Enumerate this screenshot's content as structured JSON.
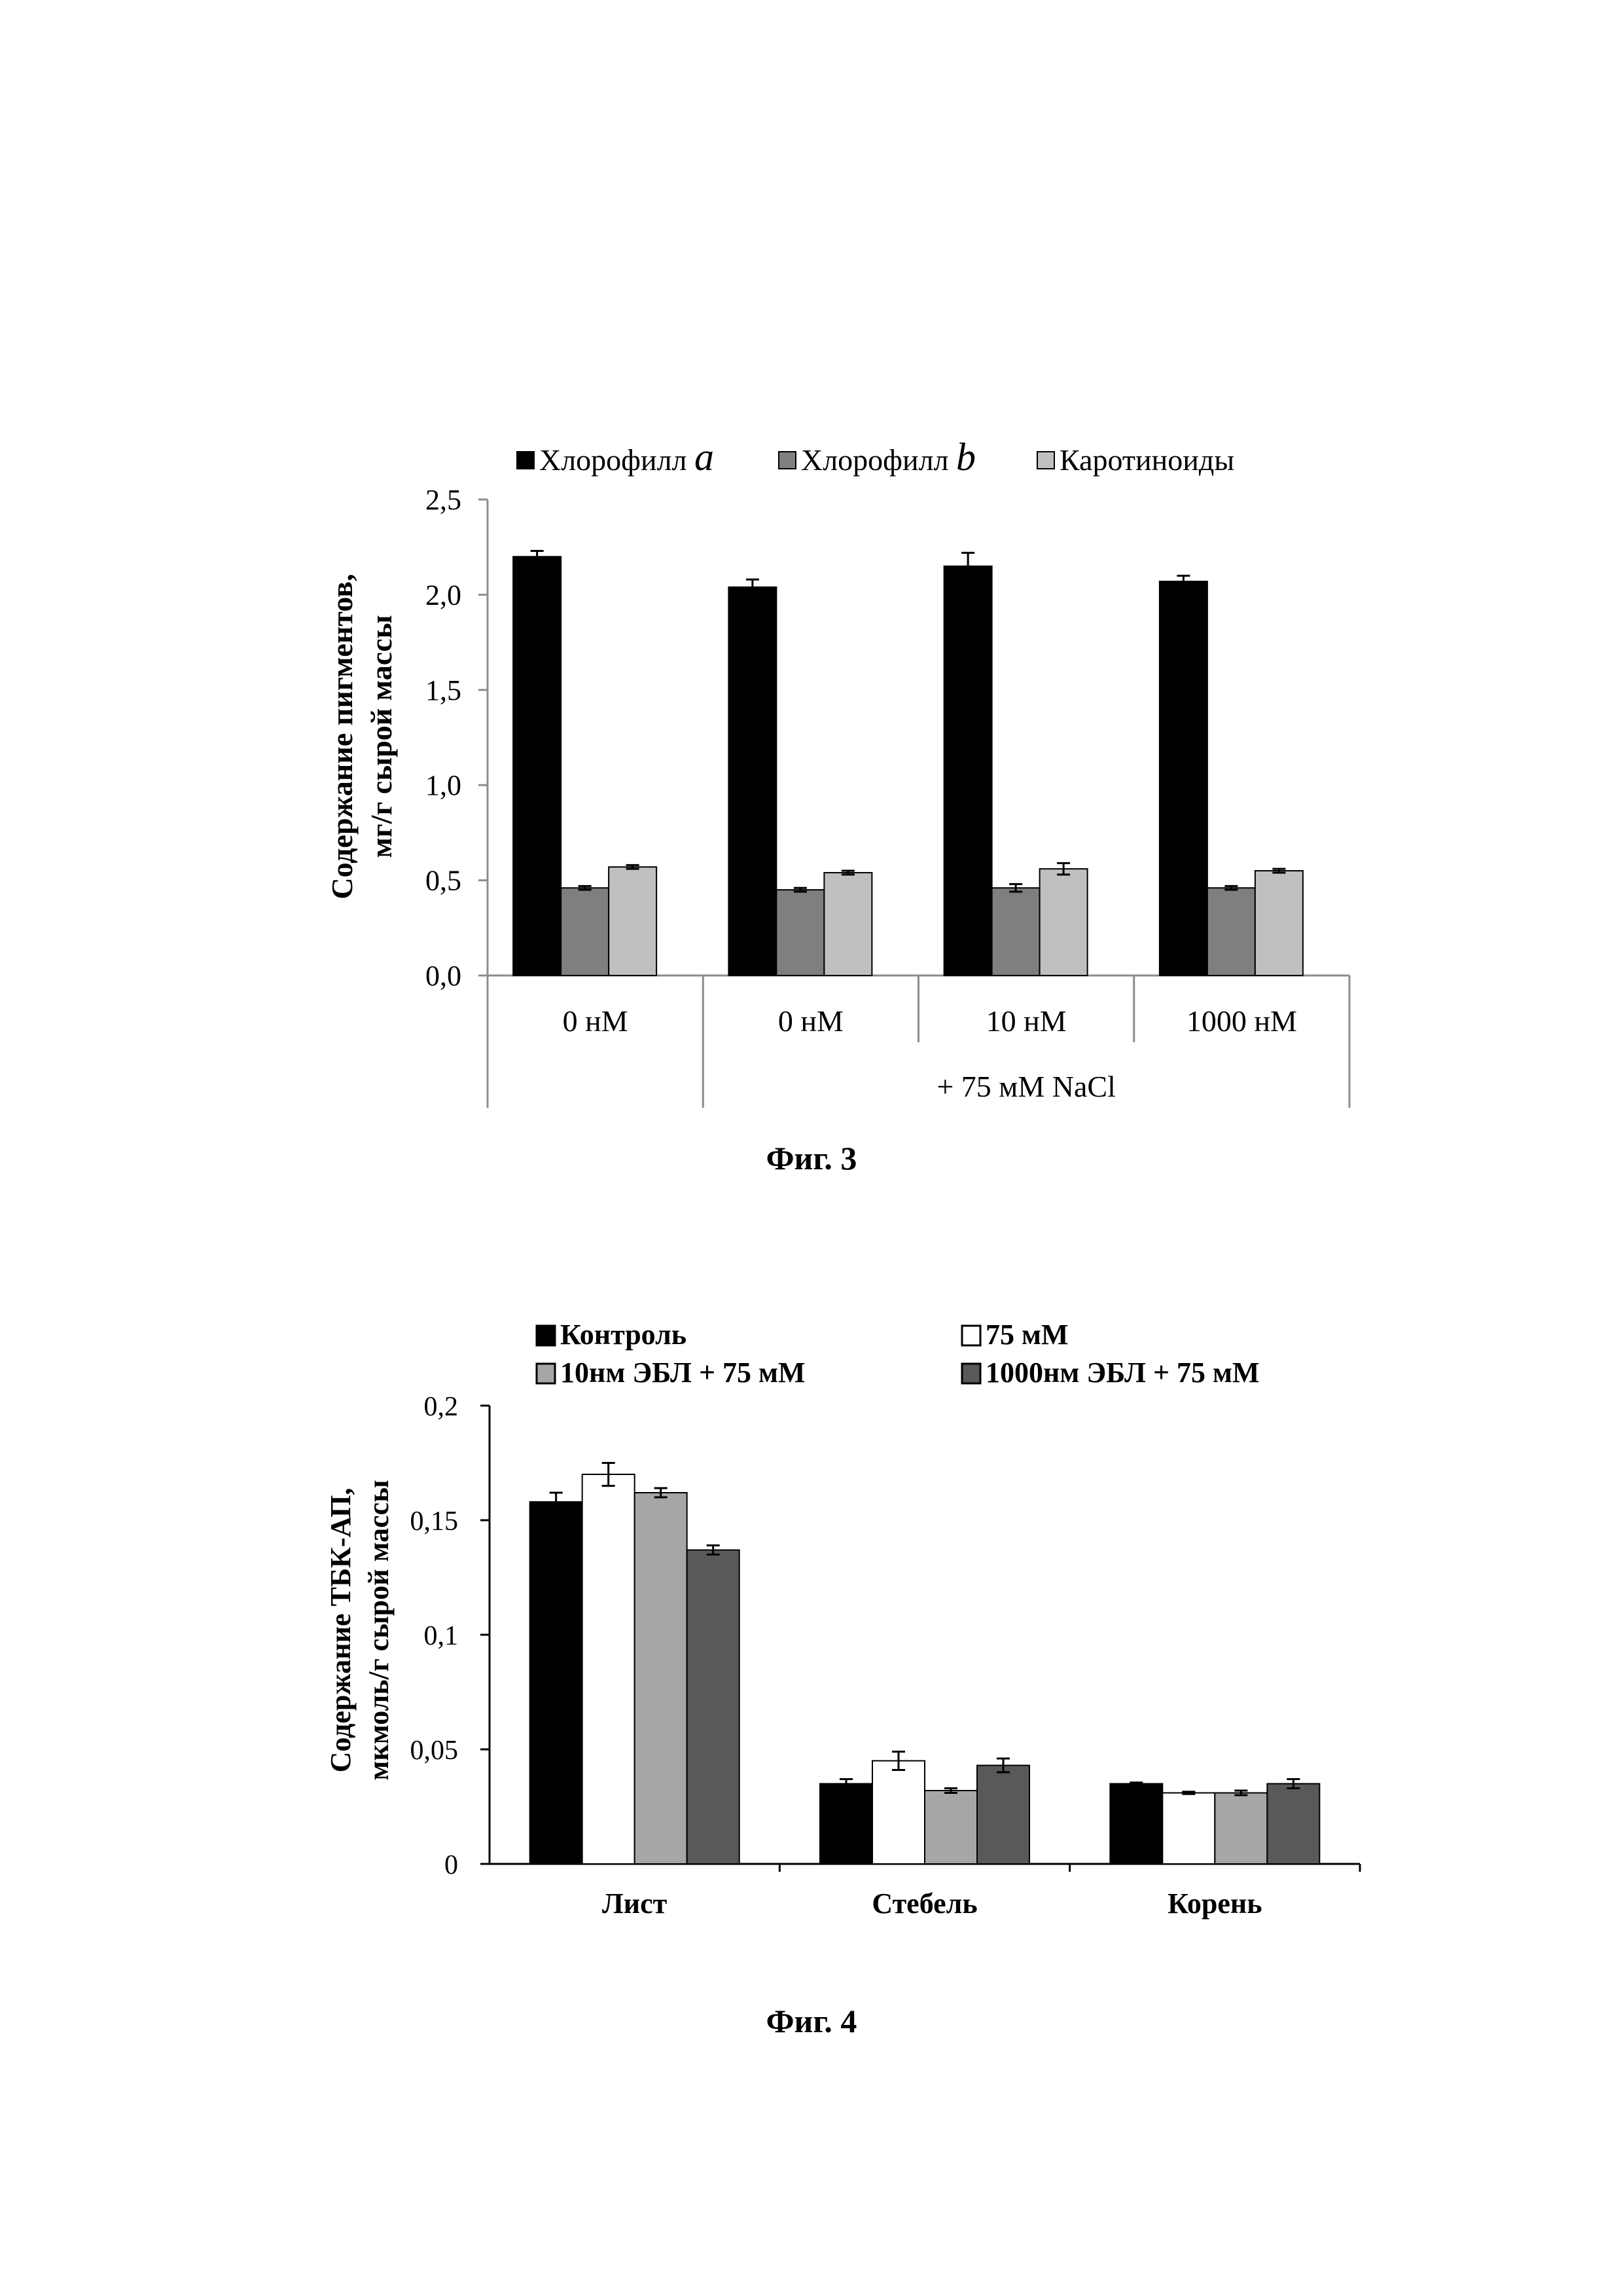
{
  "figures": [
    {
      "caption": "Фиг. 3"
    },
    {
      "caption": "Фиг. 4"
    }
  ],
  "chart_data": [
    {
      "type": "bar",
      "ylabel_line1": "Содержание пигментов,",
      "ylabel_line2": "мг/г сырой массы",
      "ylim": [
        0,
        2.5
      ],
      "yticks": [
        "0,0",
        "0,5",
        "1,0",
        "1,5",
        "2,0",
        "2,5"
      ],
      "ytick_values": [
        0,
        0.5,
        1.0,
        1.5,
        2.0,
        2.5
      ],
      "categories": [
        "0 нМ",
        "0 нМ",
        "10 нМ",
        "1000 нМ"
      ],
      "group_label": "+ 75 мМ NaCl",
      "legend": [
        {
          "prefix": "Хлорофилл ",
          "italic": "a"
        },
        {
          "prefix": "Хлорофилл ",
          "italic": "b"
        },
        {
          "prefix": "Каротиноиды",
          "italic": ""
        }
      ],
      "colors": [
        "#000000",
        "#7f7f7f",
        "#c0c0c0"
      ],
      "series": [
        {
          "name": "Хлорофилл a",
          "values": [
            2.2,
            2.04,
            2.15,
            2.07
          ],
          "errors": [
            0.03,
            0.04,
            0.07,
            0.03
          ]
        },
        {
          "name": "Хлорофилл b",
          "values": [
            0.46,
            0.45,
            0.46,
            0.46
          ],
          "errors": [
            0.01,
            0.01,
            0.02,
            0.01
          ]
        },
        {
          "name": "Каротиноиды",
          "values": [
            0.57,
            0.54,
            0.56,
            0.55
          ],
          "errors": [
            0.01,
            0.01,
            0.03,
            0.01
          ]
        }
      ]
    },
    {
      "type": "bar",
      "ylabel_line1": "Содержание ТБК-АП,",
      "ylabel_line2": "мкмоль/г сырой массы",
      "ylim": [
        0,
        0.2
      ],
      "yticks": [
        "0",
        "0,05",
        "0,1",
        "0,15",
        "0,2"
      ],
      "ytick_values": [
        0,
        0.05,
        0.1,
        0.15,
        0.2
      ],
      "categories": [
        "Лист",
        "Стебель",
        "Корень"
      ],
      "legend": [
        "Контроль",
        "75 мМ",
        "10нм ЭБЛ + 75 мМ",
        "1000нм ЭБЛ + 75 мМ"
      ],
      "colors": [
        "#000000",
        "#ffffff",
        "#a6a6a6",
        "#595959"
      ],
      "series": [
        {
          "name": "Контроль",
          "values": [
            0.158,
            0.035,
            0.035
          ],
          "errors": [
            0.004,
            0.002,
            0.0005
          ]
        },
        {
          "name": "75 мМ",
          "values": [
            0.17,
            0.045,
            0.031
          ],
          "errors": [
            0.005,
            0.004,
            0.0005
          ]
        },
        {
          "name": "10нм ЭБЛ + 75 мМ",
          "values": [
            0.162,
            0.032,
            0.031
          ],
          "errors": [
            0.002,
            0.001,
            0.001
          ]
        },
        {
          "name": "1000нм ЭБЛ + 75 мМ",
          "values": [
            0.137,
            0.043,
            0.035
          ],
          "errors": [
            0.002,
            0.003,
            0.002
          ]
        }
      ]
    }
  ]
}
